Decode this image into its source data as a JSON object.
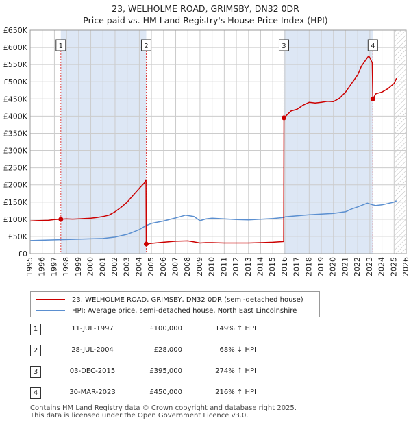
{
  "title_line1": "23, WELHOLME ROAD, GRIMSBY, DN32 0DR",
  "title_line2": "Price paid vs. HM Land Registry's House Price Index (HPI)",
  "colors": {
    "price": "#cc0000",
    "hpi": "#5b8fd0",
    "band": "#dde7f5",
    "grid": "#cccccc",
    "marker_line": "#dd4444"
  },
  "chart_data": {
    "type": "line",
    "xlim": [
      1995,
      2026
    ],
    "ylim": [
      0,
      650000
    ],
    "y_ticks": [
      0,
      50000,
      100000,
      150000,
      200000,
      250000,
      300000,
      350000,
      400000,
      450000,
      500000,
      550000,
      600000,
      650000
    ],
    "y_tick_labels": [
      "£0",
      "£50K",
      "£100K",
      "£150K",
      "£200K",
      "£250K",
      "£300K",
      "£350K",
      "£400K",
      "£450K",
      "£500K",
      "£550K",
      "£600K",
      "£650K"
    ],
    "x_ticks": [
      1995,
      1996,
      1997,
      1998,
      1999,
      2000,
      2001,
      2002,
      2003,
      2004,
      2005,
      2006,
      2007,
      2008,
      2009,
      2010,
      2011,
      2012,
      2013,
      2014,
      2015,
      2016,
      2017,
      2018,
      2019,
      2020,
      2021,
      2022,
      2023,
      2024,
      2025,
      2026
    ],
    "x_tick_labels": [
      "1995",
      "1996",
      "1997",
      "1998",
      "1999",
      "2000",
      "2001",
      "2002",
      "2003",
      "2004",
      "2005",
      "2006",
      "2007",
      "2008",
      "2009",
      "2010",
      "2011",
      "2012",
      "2013",
      "2014",
      "2015",
      "2016",
      "2017",
      "2018",
      "2019",
      "2020",
      "2021",
      "2022",
      "2023",
      "2024",
      "2025",
      "2026"
    ],
    "shaded_ranges": [
      [
        1997.53,
        2004.57
      ],
      [
        2015.92,
        2023.25
      ]
    ],
    "future_from": 2025.0,
    "sales": [
      {
        "label": "1",
        "x": 1997.53,
        "y": 100000
      },
      {
        "label": "2",
        "x": 2004.57,
        "y": 28000
      },
      {
        "label": "3",
        "x": 2015.92,
        "y": 395000
      },
      {
        "label": "4",
        "x": 2023.25,
        "y": 450000
      }
    ],
    "series": [
      {
        "name": "23, WELHOLME ROAD, GRIMSBY, DN32 0DR (semi-detached house)",
        "color": "#cc0000",
        "x": [
          1995,
          1995.5,
          1996,
          1996.5,
          1997,
          1997.53,
          1998,
          1998.5,
          1999,
          1999.5,
          2000,
          2000.5,
          2001,
          2001.5,
          2002,
          2002.5,
          2003,
          2003.5,
          2004,
          2004.4,
          2004.55,
          2004.57,
          2005,
          2006,
          2007,
          2008,
          2008.5,
          2009,
          2009.5,
          2010,
          2011,
          2012,
          2013,
          2014,
          2015,
          2015.9,
          2015.92,
          2016.5,
          2017,
          2017.5,
          2018,
          2018.5,
          2019,
          2019.5,
          2020,
          2020.5,
          2021,
          2021.5,
          2022,
          2022.3,
          2022.6,
          2022.9,
          2023.0,
          2023.2,
          2023.25,
          2023.5,
          2024,
          2024.5,
          2025,
          2025.2
        ],
        "y": [
          95000,
          96000,
          96500,
          97000,
          99000,
          100000,
          101000,
          100500,
          101000,
          102000,
          103000,
          105000,
          108000,
          112000,
          122000,
          135000,
          150000,
          170000,
          190000,
          205000,
          215000,
          28000,
          30000,
          33000,
          36000,
          37000,
          34000,
          31000,
          32000,
          32000,
          31000,
          31000,
          31000,
          32000,
          33000,
          35000,
          395000,
          415000,
          420000,
          432000,
          440000,
          438000,
          440000,
          443000,
          442000,
          452000,
          470000,
          495000,
          520000,
          545000,
          560000,
          575000,
          570000,
          555000,
          450000,
          465000,
          470000,
          480000,
          495000,
          510000
        ]
      },
      {
        "name": "HPI: Average price, semi-detached house, North East Lincolnshire",
        "color": "#5b8fd0",
        "x": [
          1995,
          1996,
          1997,
          1998,
          1999,
          2000,
          2001,
          2002,
          2003,
          2004,
          2004.57,
          2005,
          2006,
          2007,
          2007.8,
          2008.5,
          2009,
          2009.5,
          2010,
          2011,
          2012,
          2013,
          2014,
          2015,
          2015.92,
          2016,
          2017,
          2018,
          2019,
          2020,
          2021,
          2021.5,
          2022,
          2022.5,
          2022.8,
          2023.25,
          2023.5,
          2024,
          2024.5,
          2025,
          2025.2
        ],
        "y": [
          38000,
          39000,
          40000,
          41000,
          42000,
          43000,
          44000,
          48000,
          56000,
          70000,
          82000,
          88000,
          95000,
          104000,
          112000,
          108000,
          96000,
          101000,
          103000,
          101000,
          99000,
          98000,
          100000,
          102000,
          105000,
          107000,
          110000,
          113000,
          115000,
          117000,
          122000,
          130000,
          136000,
          143000,
          147000,
          142000,
          140000,
          142000,
          146000,
          150000,
          154000
        ]
      }
    ]
  },
  "legend": {
    "price_label": "23, WELHOLME ROAD, GRIMSBY, DN32 0DR (semi-detached house)",
    "hpi_label": "HPI: Average price, semi-detached house, North East Lincolnshire"
  },
  "sales_table": [
    {
      "num": "1",
      "date": "11-JUL-1997",
      "price": "£100,000",
      "hpi": "149% ↑ HPI"
    },
    {
      "num": "2",
      "date": "28-JUL-2004",
      "price": "£28,000",
      "hpi": "68% ↓ HPI"
    },
    {
      "num": "3",
      "date": "03-DEC-2015",
      "price": "£395,000",
      "hpi": "274% ↑ HPI"
    },
    {
      "num": "4",
      "date": "30-MAR-2023",
      "price": "£450,000",
      "hpi": "216% ↑ HPI"
    }
  ],
  "footer_line1": "Contains HM Land Registry data © Crown copyright and database right 2025.",
  "footer_line2": "This data is licensed under the Open Government Licence v3.0."
}
